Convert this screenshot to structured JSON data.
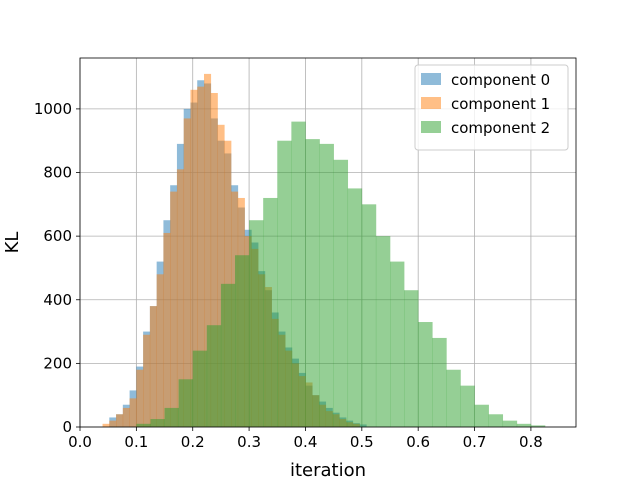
{
  "chart_data": {
    "type": "histogram",
    "xlabel": "iteration",
    "ylabel": "KL",
    "xlim": [
      0.0,
      0.88
    ],
    "ylim": [
      0,
      1160
    ],
    "xticks": [
      "0.0",
      "0.1",
      "0.2",
      "0.3",
      "0.4",
      "0.5",
      "0.6",
      "0.7",
      "0.8"
    ],
    "yticks": [
      "0",
      "200",
      "400",
      "600",
      "800",
      "1000"
    ],
    "grid": true,
    "legend_position": "top-right",
    "series": [
      {
        "name": "component 0",
        "color": "#1f77b4",
        "opacity": 0.5,
        "bins": [
          [
            0.052,
            0.064,
            30
          ],
          [
            0.064,
            0.076,
            40
          ],
          [
            0.076,
            0.088,
            70
          ],
          [
            0.088,
            0.1,
            115
          ],
          [
            0.1,
            0.112,
            190
          ],
          [
            0.112,
            0.124,
            300
          ],
          [
            0.124,
            0.136,
            380
          ],
          [
            0.136,
            0.148,
            520
          ],
          [
            0.148,
            0.16,
            650
          ],
          [
            0.16,
            0.172,
            760
          ],
          [
            0.172,
            0.184,
            890
          ],
          [
            0.184,
            0.196,
            1000
          ],
          [
            0.196,
            0.208,
            1020
          ],
          [
            0.208,
            0.22,
            1090
          ],
          [
            0.22,
            0.232,
            1080
          ],
          [
            0.232,
            0.244,
            970
          ],
          [
            0.244,
            0.256,
            900
          ],
          [
            0.256,
            0.268,
            860
          ],
          [
            0.268,
            0.28,
            760
          ],
          [
            0.28,
            0.292,
            690
          ],
          [
            0.292,
            0.304,
            620
          ],
          [
            0.304,
            0.316,
            580
          ],
          [
            0.316,
            0.328,
            490
          ],
          [
            0.328,
            0.34,
            430
          ],
          [
            0.34,
            0.352,
            360
          ],
          [
            0.352,
            0.364,
            300
          ],
          [
            0.364,
            0.376,
            250
          ],
          [
            0.376,
            0.388,
            215
          ],
          [
            0.388,
            0.4,
            170
          ],
          [
            0.4,
            0.412,
            130
          ],
          [
            0.412,
            0.424,
            100
          ],
          [
            0.424,
            0.436,
            80
          ],
          [
            0.436,
            0.448,
            60
          ],
          [
            0.448,
            0.46,
            45
          ],
          [
            0.46,
            0.472,
            30
          ],
          [
            0.472,
            0.484,
            20
          ],
          [
            0.484,
            0.496,
            12
          ],
          [
            0.496,
            0.508,
            8
          ]
        ]
      },
      {
        "name": "component 1",
        "color": "#ff7f0e",
        "opacity": 0.5,
        "bins": [
          [
            0.04,
            0.052,
            10
          ],
          [
            0.052,
            0.064,
            20
          ],
          [
            0.064,
            0.076,
            40
          ],
          [
            0.076,
            0.088,
            60
          ],
          [
            0.088,
            0.1,
            90
          ],
          [
            0.1,
            0.112,
            180
          ],
          [
            0.112,
            0.124,
            290
          ],
          [
            0.124,
            0.136,
            380
          ],
          [
            0.136,
            0.148,
            480
          ],
          [
            0.148,
            0.16,
            610
          ],
          [
            0.16,
            0.172,
            740
          ],
          [
            0.172,
            0.184,
            810
          ],
          [
            0.184,
            0.196,
            970
          ],
          [
            0.196,
            0.208,
            1060
          ],
          [
            0.208,
            0.22,
            1070
          ],
          [
            0.22,
            0.232,
            1110
          ],
          [
            0.232,
            0.244,
            1050
          ],
          [
            0.244,
            0.256,
            950
          ],
          [
            0.256,
            0.268,
            900
          ],
          [
            0.268,
            0.28,
            740
          ],
          [
            0.28,
            0.292,
            720
          ],
          [
            0.292,
            0.304,
            600
          ],
          [
            0.304,
            0.316,
            560
          ],
          [
            0.316,
            0.328,
            480
          ],
          [
            0.328,
            0.34,
            440
          ],
          [
            0.34,
            0.352,
            340
          ],
          [
            0.352,
            0.364,
            290
          ],
          [
            0.364,
            0.376,
            240
          ],
          [
            0.376,
            0.388,
            200
          ],
          [
            0.388,
            0.4,
            160
          ],
          [
            0.4,
            0.412,
            140
          ],
          [
            0.412,
            0.424,
            100
          ],
          [
            0.424,
            0.436,
            70
          ],
          [
            0.436,
            0.448,
            50
          ],
          [
            0.448,
            0.46,
            40
          ],
          [
            0.46,
            0.472,
            25
          ],
          [
            0.472,
            0.484,
            15
          ],
          [
            0.484,
            0.496,
            10
          ]
        ]
      },
      {
        "name": "component 2",
        "color": "#2ca02c",
        "opacity": 0.5,
        "bins": [
          [
            0.1,
            0.125,
            10
          ],
          [
            0.125,
            0.15,
            25
          ],
          [
            0.15,
            0.175,
            60
          ],
          [
            0.175,
            0.2,
            150
          ],
          [
            0.2,
            0.225,
            240
          ],
          [
            0.225,
            0.25,
            320
          ],
          [
            0.25,
            0.275,
            450
          ],
          [
            0.275,
            0.3,
            540
          ],
          [
            0.3,
            0.325,
            650
          ],
          [
            0.325,
            0.35,
            720
          ],
          [
            0.35,
            0.375,
            900
          ],
          [
            0.375,
            0.4,
            960
          ],
          [
            0.4,
            0.425,
            905
          ],
          [
            0.425,
            0.45,
            890
          ],
          [
            0.45,
            0.475,
            840
          ],
          [
            0.475,
            0.5,
            750
          ],
          [
            0.5,
            0.525,
            700
          ],
          [
            0.525,
            0.55,
            600
          ],
          [
            0.55,
            0.575,
            520
          ],
          [
            0.575,
            0.6,
            430
          ],
          [
            0.6,
            0.625,
            330
          ],
          [
            0.625,
            0.65,
            280
          ],
          [
            0.65,
            0.675,
            180
          ],
          [
            0.675,
            0.7,
            130
          ],
          [
            0.7,
            0.725,
            70
          ],
          [
            0.725,
            0.75,
            40
          ],
          [
            0.75,
            0.775,
            20
          ],
          [
            0.775,
            0.8,
            10
          ],
          [
            0.8,
            0.825,
            5
          ]
        ]
      }
    ]
  }
}
